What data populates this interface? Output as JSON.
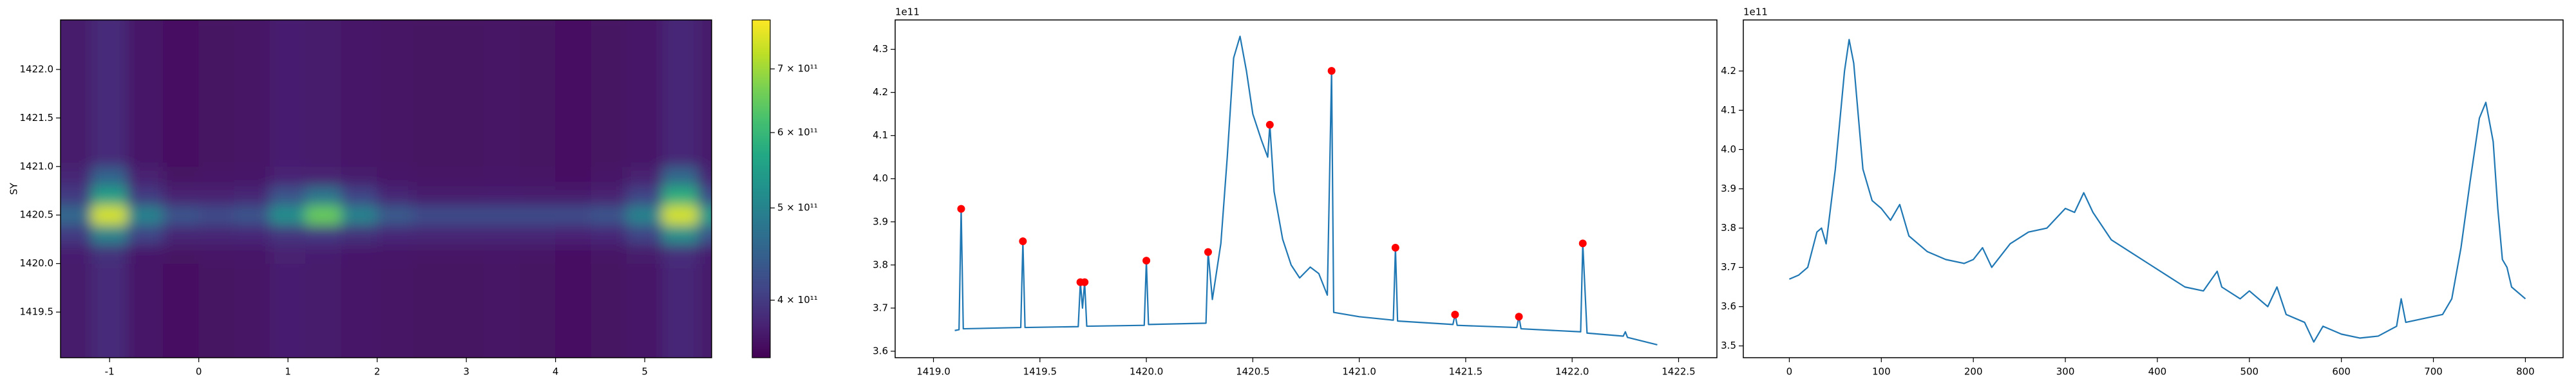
{
  "chart_data": [
    {
      "type": "heatmap",
      "ylabel": "SY",
      "colormap": "viridis",
      "x": [
        -1.4,
        -1.0,
        -0.6,
        -0.2,
        0.2,
        0.6,
        1.0,
        1.4,
        1.8,
        2.2,
        2.6,
        3.0,
        3.4,
        3.8,
        4.2,
        4.6,
        5.0,
        5.4,
        5.8
      ],
      "y": [
        1419.1,
        1419.3,
        1419.5,
        1419.7,
        1419.9,
        1420.1,
        1420.3,
        1420.5,
        1420.7,
        1420.9,
        1421.1,
        1421.3,
        1421.5,
        1421.7,
        1421.9,
        1422.1,
        1422.3
      ],
      "z": [
        [
          369000000000.0,
          384000000000.0,
          366000000000.0,
          360000000000.0,
          362000000000.0,
          363000000000.0,
          372000000000.0,
          369000000000.0,
          366000000000.0,
          363000000000.0,
          362000000000.0,
          362000000000.0,
          363000000000.0,
          362000000000.0,
          360000000000.0,
          362000000000.0,
          366000000000.0,
          381000000000.0,
          369000000000.0
        ],
        [
          369000000000.0,
          384000000000.0,
          366000000000.0,
          360000000000.0,
          362000000000.0,
          363000000000.0,
          372000000000.0,
          369000000000.0,
          366000000000.0,
          363000000000.0,
          362000000000.0,
          362000000000.0,
          363000000000.0,
          362000000000.0,
          360000000000.0,
          362000000000.0,
          366000000000.0,
          381000000000.0,
          369000000000.0
        ],
        [
          369000000000.0,
          384000000000.0,
          366000000000.0,
          360000000000.0,
          362000000000.0,
          363000000000.0,
          372000000000.0,
          369000000000.0,
          366000000000.0,
          363000000000.0,
          362000000000.0,
          362000000000.0,
          363000000000.0,
          362000000000.0,
          360000000000.0,
          362000000000.0,
          366000000000.0,
          381000000000.0,
          369000000000.0
        ],
        [
          369000000000.0,
          384000000000.0,
          366000000000.0,
          360000000000.0,
          362000000000.0,
          363000000000.0,
          372000000000.0,
          369000000000.0,
          366000000000.0,
          363000000000.0,
          362000000000.0,
          362000000000.0,
          363000000000.0,
          362000000000.0,
          360000000000.0,
          362000000000.0,
          366000000000.0,
          381000000000.0,
          369000000000.0
        ],
        [
          369000000000.0,
          384000000000.0,
          366000000000.0,
          360000000000.0,
          362000000000.0,
          363000000000.0,
          372000000000.0,
          369000000000.0,
          366000000000.0,
          363000000000.0,
          362000000000.0,
          362000000000.0,
          363000000000.0,
          362000000000.0,
          360000000000.0,
          362000000000.0,
          366000000000.0,
          381000000000.0,
          369000000000.0
        ],
        [
          372000000000.0,
          390000000000.0,
          368000000000.0,
          362000000000.0,
          364000000000.0,
          365000000000.0,
          375000000000.0,
          372000000000.0,
          368000000000.0,
          365000000000.0,
          363000000000.0,
          363000000000.0,
          364000000000.0,
          363000000000.0,
          361000000000.0,
          363000000000.0,
          369000000000.0,
          388000000000.0,
          372000000000.0
        ],
        [
          400000000000.0,
          500000000000.0,
          410000000000.0,
          380000000000.0,
          380000000000.0,
          382000000000.0,
          395000000000.0,
          398000000000.0,
          390000000000.0,
          382000000000.0,
          380000000000.0,
          380000000000.0,
          380000000000.0,
          380000000000.0,
          378000000000.0,
          382000000000.0,
          410000000000.0,
          520000000000.0,
          430000000000.0
        ],
        [
          460000000000.0,
          750000000000.0,
          500000000000.0,
          430000000000.0,
          420000000000.0,
          430000000000.0,
          520000000000.0,
          650000000000.0,
          500000000000.0,
          440000000000.0,
          420000000000.0,
          420000000000.0,
          420000000000.0,
          420000000000.0,
          420000000000.0,
          430000000000.0,
          500000000000.0,
          750000000000.0,
          540000000000.0
        ],
        [
          400000000000.0,
          550000000000.0,
          400000000000.0,
          375000000000.0,
          375000000000.0,
          380000000000.0,
          430000000000.0,
          480000000000.0,
          410000000000.0,
          380000000000.0,
          370000000000.0,
          370000000000.0,
          372000000000.0,
          370000000000.0,
          370000000000.0,
          375000000000.0,
          410000000000.0,
          580000000000.0,
          420000000000.0
        ],
        [
          380000000000.0,
          450000000000.0,
          375000000000.0,
          362000000000.0,
          364000000000.0,
          366000000000.0,
          378000000000.0,
          375000000000.0,
          370000000000.0,
          365000000000.0,
          363000000000.0,
          363000000000.0,
          364000000000.0,
          363000000000.0,
          361000000000.0,
          364000000000.0,
          375000000000.0,
          460000000000.0,
          380000000000.0
        ],
        [
          369000000000.0,
          384000000000.0,
          366000000000.0,
          360000000000.0,
          362000000000.0,
          363000000000.0,
          372000000000.0,
          369000000000.0,
          366000000000.0,
          363000000000.0,
          362000000000.0,
          362000000000.0,
          363000000000.0,
          362000000000.0,
          360000000000.0,
          362000000000.0,
          366000000000.0,
          381000000000.0,
          369000000000.0
        ],
        [
          369000000000.0,
          384000000000.0,
          366000000000.0,
          360000000000.0,
          362000000000.0,
          363000000000.0,
          372000000000.0,
          369000000000.0,
          366000000000.0,
          363000000000.0,
          362000000000.0,
          362000000000.0,
          363000000000.0,
          362000000000.0,
          360000000000.0,
          362000000000.0,
          366000000000.0,
          381000000000.0,
          369000000000.0
        ],
        [
          369000000000.0,
          384000000000.0,
          366000000000.0,
          360000000000.0,
          362000000000.0,
          363000000000.0,
          372000000000.0,
          369000000000.0,
          366000000000.0,
          363000000000.0,
          362000000000.0,
          362000000000.0,
          363000000000.0,
          362000000000.0,
          360000000000.0,
          362000000000.0,
          366000000000.0,
          381000000000.0,
          369000000000.0
        ],
        [
          369000000000.0,
          384000000000.0,
          366000000000.0,
          360000000000.0,
          362000000000.0,
          363000000000.0,
          372000000000.0,
          369000000000.0,
          366000000000.0,
          363000000000.0,
          362000000000.0,
          362000000000.0,
          363000000000.0,
          362000000000.0,
          360000000000.0,
          362000000000.0,
          366000000000.0,
          381000000000.0,
          369000000000.0
        ],
        [
          369000000000.0,
          384000000000.0,
          366000000000.0,
          360000000000.0,
          362000000000.0,
          363000000000.0,
          372000000000.0,
          369000000000.0,
          366000000000.0,
          363000000000.0,
          362000000000.0,
          362000000000.0,
          363000000000.0,
          362000000000.0,
          360000000000.0,
          362000000000.0,
          366000000000.0,
          381000000000.0,
          369000000000.0
        ],
        [
          369000000000.0,
          384000000000.0,
          366000000000.0,
          360000000000.0,
          362000000000.0,
          363000000000.0,
          372000000000.0,
          369000000000.0,
          366000000000.0,
          363000000000.0,
          362000000000.0,
          362000000000.0,
          363000000000.0,
          362000000000.0,
          360000000000.0,
          362000000000.0,
          366000000000.0,
          381000000000.0,
          369000000000.0
        ],
        [
          369000000000.0,
          384000000000.0,
          366000000000.0,
          360000000000.0,
          362000000000.0,
          363000000000.0,
          372000000000.0,
          369000000000.0,
          366000000000.0,
          363000000000.0,
          362000000000.0,
          362000000000.0,
          363000000000.0,
          362000000000.0,
          360000000000.0,
          362000000000.0,
          366000000000.0,
          381000000000.0,
          369000000000.0
        ]
      ],
      "xlim": [
        -1.55,
        5.75
      ],
      "ylim": [
        1419.03,
        1422.51
      ],
      "xticks": [
        -1,
        0,
        1,
        2,
        3,
        4,
        5
      ],
      "yticks": [
        1419.5,
        {
          "value": 1420,
          "label": "1420.0"
        },
        1420.5,
        {
          "value": 1421,
          "label": "1421.0"
        },
        1421.5,
        {
          "value": 1422,
          "label": "1422.0"
        }
      ],
      "colorbar": {
        "log_scale": true,
        "clim": [
          348000000000.0,
          788000000000.0
        ],
        "ticks": [
          {
            "value": 400000000000.0,
            "label": "4 × 10¹¹"
          },
          {
            "value": 500000000000.0,
            "label": "5 × 10¹¹"
          },
          {
            "value": 600000000000.0,
            "label": "6 × 10¹¹"
          },
          {
            "value": 700000000000.0,
            "label": "7 × 10¹¹"
          }
        ]
      }
    },
    {
      "type": "line",
      "y_offset_label": "1e11",
      "line": {
        "color": "#1f77b4",
        "x": [
          1419.1,
          1419.12,
          1419.13,
          1419.14,
          1419.41,
          1419.42,
          1419.43,
          1419.68,
          1419.69,
          1419.7,
          1419.71,
          1419.72,
          1419.99,
          1420.0,
          1420.01,
          1420.28,
          1420.29,
          1420.31,
          1420.35,
          1420.38,
          1420.41,
          1420.44,
          1420.47,
          1420.5,
          1420.54,
          1420.57,
          1420.58,
          1420.6,
          1420.64,
          1420.68,
          1420.72,
          1420.77,
          1420.81,
          1420.85,
          1420.87,
          1420.88,
          1421.0,
          1421.16,
          1421.17,
          1421.18,
          1421.44,
          1421.45,
          1421.46,
          1421.74,
          1421.75,
          1421.76,
          1422.04,
          1422.05,
          1422.07,
          1422.24,
          1422.25,
          1422.26,
          1422.4
        ],
        "values": [
          3.648,
          3.65,
          3.93,
          3.652,
          3.655,
          3.855,
          3.655,
          3.657,
          3.76,
          3.7,
          3.76,
          3.658,
          3.66,
          3.81,
          3.662,
          3.665,
          3.83,
          3.72,
          3.85,
          4.05,
          4.28,
          4.33,
          4.25,
          4.15,
          4.09,
          4.05,
          4.125,
          3.97,
          3.86,
          3.8,
          3.77,
          3.795,
          3.78,
          3.73,
          4.25,
          3.69,
          3.68,
          3.672,
          3.84,
          3.67,
          3.662,
          3.685,
          3.66,
          3.655,
          3.68,
          3.652,
          3.645,
          3.85,
          3.642,
          3.635,
          3.645,
          3.632,
          3.615
        ]
      },
      "peaks": {
        "color": "#ff0000",
        "x": [
          1419.13,
          1419.42,
          1419.69,
          1419.71,
          1420.0,
          1420.29,
          1420.58,
          1420.87,
          1421.17,
          1421.45,
          1421.75,
          1422.05
        ],
        "values": [
          3.93,
          3.855,
          3.76,
          3.76,
          3.81,
          3.83,
          4.125,
          4.25,
          3.84,
          3.685,
          3.68,
          3.85
        ]
      },
      "xlim": [
        1418.82,
        1422.68
      ],
      "ylim": [
        3.585,
        4.368
      ],
      "xticks": [
        {
          "value": 1419,
          "label": "1419.0"
        },
        1419.5,
        {
          "value": 1420,
          "label": "1420.0"
        },
        1420.5,
        {
          "value": 1421,
          "label": "1421.0"
        },
        1421.5,
        {
          "value": 1422,
          "label": "1422.0"
        },
        1422.5
      ],
      "yticks": [
        3.6,
        3.7,
        3.8,
        3.9,
        {
          "value": 4,
          "label": "4.0"
        },
        4.1,
        4.2,
        4.3
      ]
    },
    {
      "type": "line",
      "y_offset_label": "1e11",
      "line": {
        "color": "#1f77b4",
        "x": [
          0,
          10,
          20,
          30,
          35,
          40,
          50,
          60,
          65,
          70,
          80,
          90,
          100,
          110,
          120,
          130,
          150,
          170,
          190,
          200,
          210,
          220,
          240,
          260,
          280,
          300,
          310,
          320,
          330,
          350,
          370,
          390,
          410,
          430,
          450,
          465,
          470,
          490,
          500,
          520,
          530,
          540,
          560,
          570,
          580,
          600,
          620,
          640,
          660,
          665,
          670,
          690,
          710,
          720,
          730,
          740,
          750,
          757,
          765,
          770,
          775,
          780,
          785,
          800
        ],
        "values": [
          3.67,
          3.68,
          3.7,
          3.79,
          3.8,
          3.76,
          3.95,
          4.2,
          4.28,
          4.22,
          3.95,
          3.87,
          3.85,
          3.82,
          3.86,
          3.78,
          3.74,
          3.72,
          3.71,
          3.72,
          3.75,
          3.7,
          3.76,
          3.79,
          3.8,
          3.85,
          3.84,
          3.89,
          3.84,
          3.77,
          3.74,
          3.71,
          3.68,
          3.65,
          3.64,
          3.69,
          3.65,
          3.62,
          3.64,
          3.6,
          3.65,
          3.58,
          3.56,
          3.51,
          3.55,
          3.53,
          3.52,
          3.525,
          3.55,
          3.62,
          3.56,
          3.57,
          3.58,
          3.62,
          3.75,
          3.92,
          4.08,
          4.12,
          4.02,
          3.85,
          3.72,
          3.7,
          3.65,
          3.62
        ]
      },
      "xlim": [
        -50,
        841
      ],
      "ylim": [
        3.47,
        4.33
      ],
      "xticks": [
        0,
        100,
        200,
        300,
        400,
        500,
        600,
        700,
        800
      ],
      "yticks": [
        3.5,
        3.6,
        3.7,
        3.8,
        3.9,
        {
          "value": 4,
          "label": "4.0"
        },
        4.1,
        4.2
      ]
    }
  ]
}
